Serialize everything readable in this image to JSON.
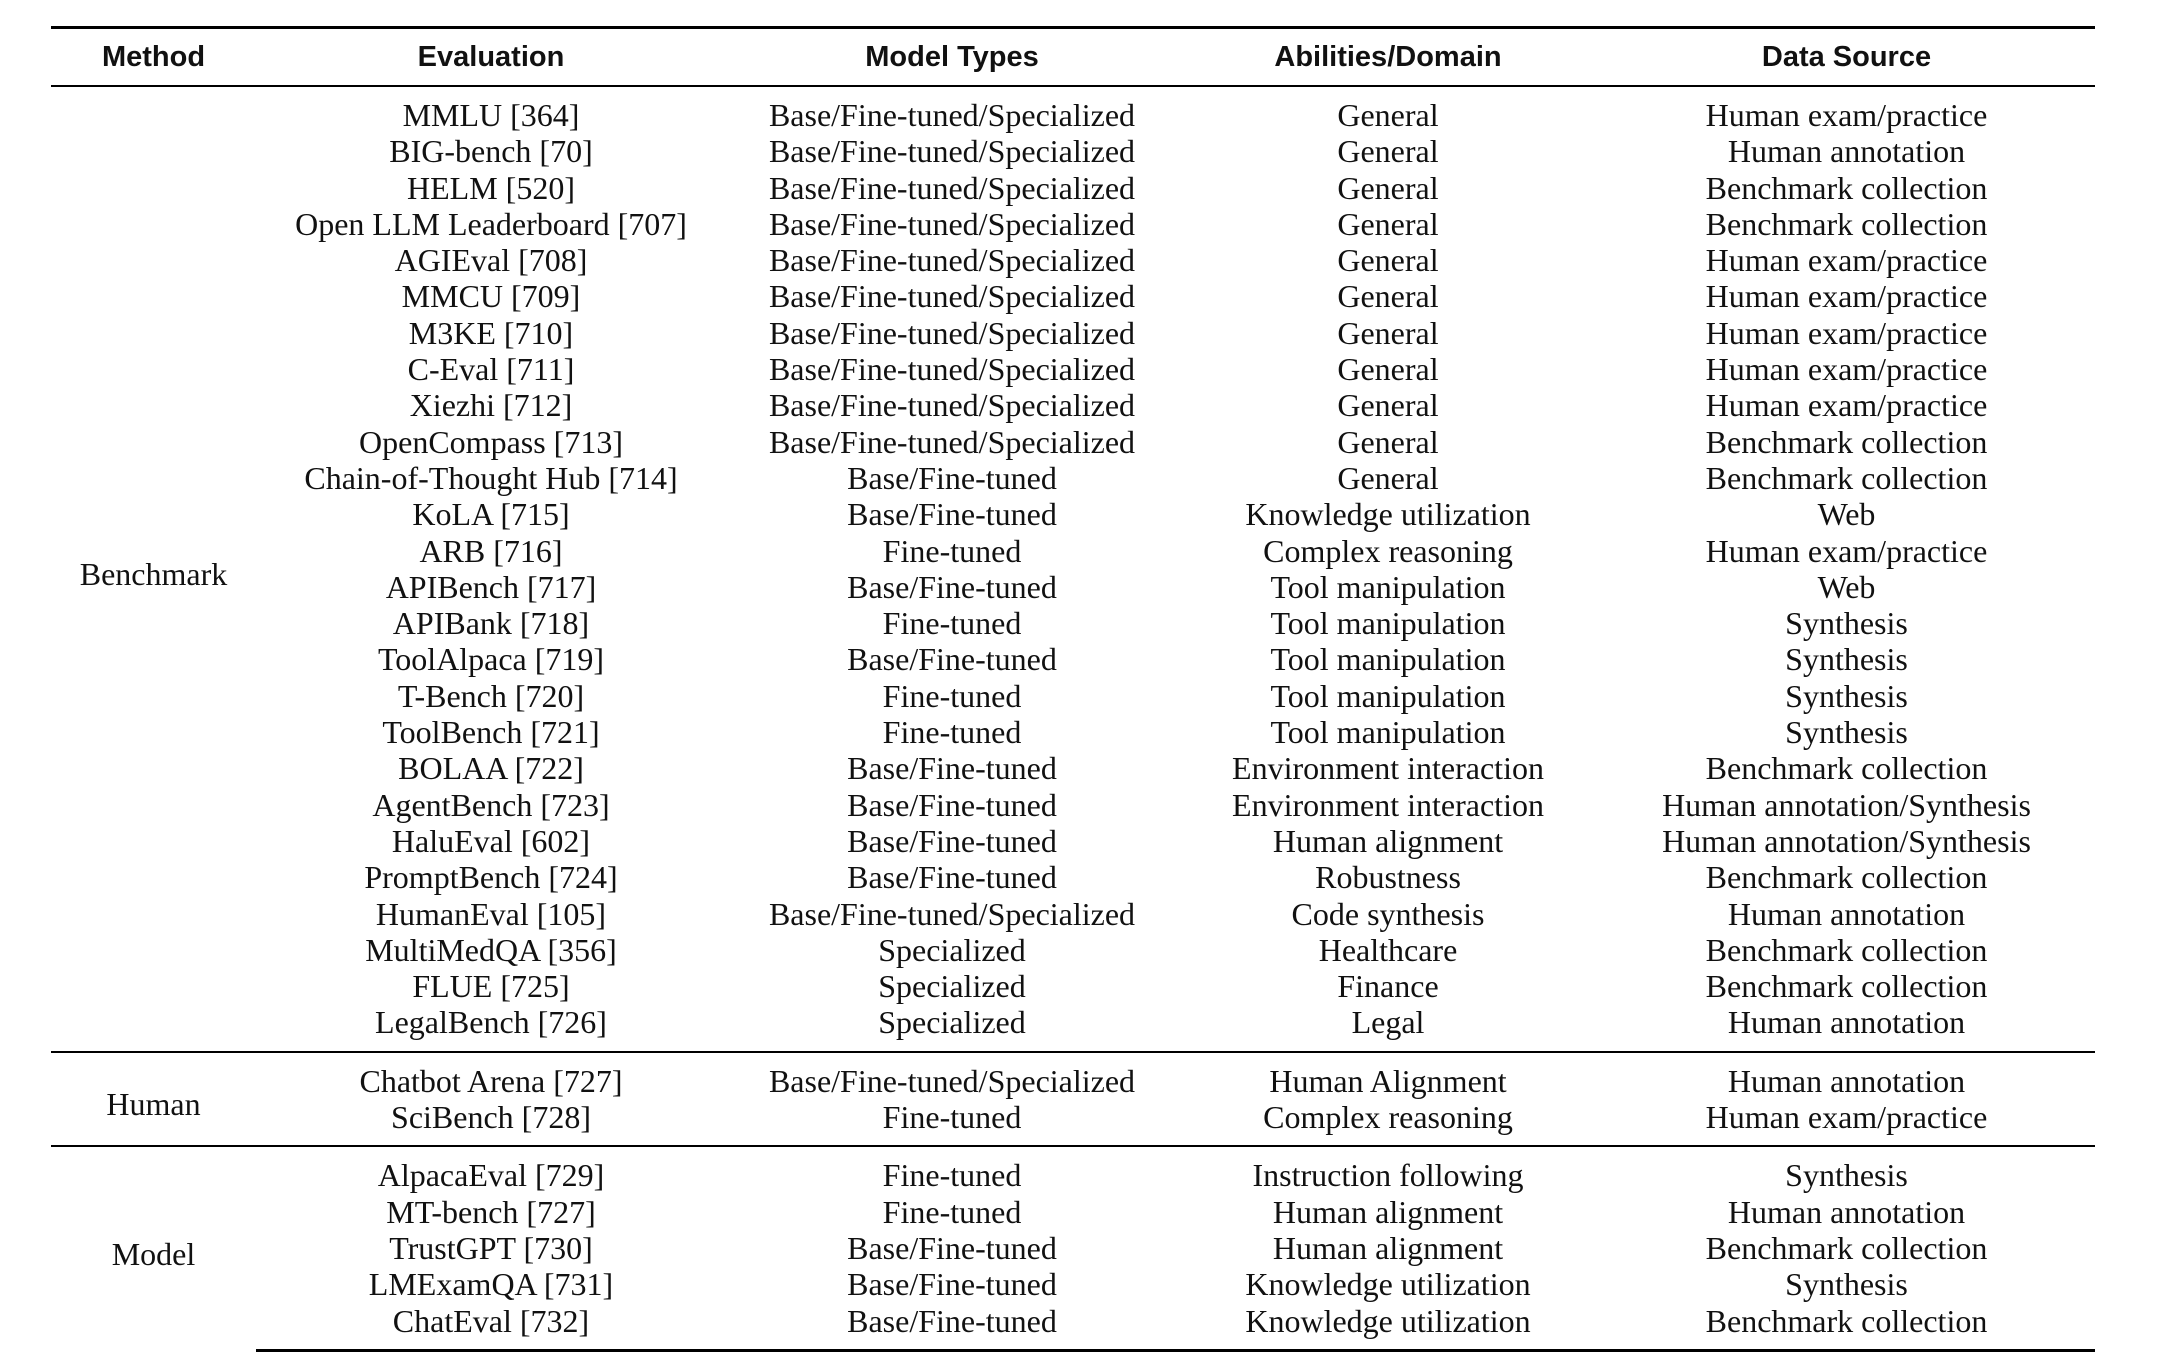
{
  "headers": {
    "method": "Method",
    "evaluation": "Evaluation",
    "model_types": "Model Types",
    "abilities": "Abilities/Domain",
    "data_source": "Data Source"
  },
  "groups": [
    {
      "method": "Benchmark",
      "rows": [
        {
          "evaluation": "MMLU [364]",
          "model_types": "Base/Fine-tuned/Specialized",
          "abilities": "General",
          "data_source": "Human exam/practice"
        },
        {
          "evaluation": "BIG-bench [70]",
          "model_types": "Base/Fine-tuned/Specialized",
          "abilities": "General",
          "data_source": "Human annotation"
        },
        {
          "evaluation": "HELM [520]",
          "model_types": "Base/Fine-tuned/Specialized",
          "abilities": "General",
          "data_source": "Benchmark collection"
        },
        {
          "evaluation": "Open LLM Leaderboard [707]",
          "model_types": "Base/Fine-tuned/Specialized",
          "abilities": "General",
          "data_source": "Benchmark collection"
        },
        {
          "evaluation": "AGIEval [708]",
          "model_types": "Base/Fine-tuned/Specialized",
          "abilities": "General",
          "data_source": "Human exam/practice"
        },
        {
          "evaluation": "MMCU [709]",
          "model_types": "Base/Fine-tuned/Specialized",
          "abilities": "General",
          "data_source": "Human exam/practice"
        },
        {
          "evaluation": "M3KE [710]",
          "model_types": "Base/Fine-tuned/Specialized",
          "abilities": "General",
          "data_source": "Human exam/practice"
        },
        {
          "evaluation": "C-Eval [711]",
          "model_types": "Base/Fine-tuned/Specialized",
          "abilities": "General",
          "data_source": "Human exam/practice"
        },
        {
          "evaluation": "Xiezhi [712]",
          "model_types": "Base/Fine-tuned/Specialized",
          "abilities": "General",
          "data_source": "Human exam/practice"
        },
        {
          "evaluation": "OpenCompass [713]",
          "model_types": "Base/Fine-tuned/Specialized",
          "abilities": "General",
          "data_source": "Benchmark collection"
        },
        {
          "evaluation": "Chain-of-Thought Hub [714]",
          "model_types": "Base/Fine-tuned",
          "abilities": "General",
          "data_source": "Benchmark collection"
        },
        {
          "evaluation": "KoLA [715]",
          "model_types": "Base/Fine-tuned",
          "abilities": "Knowledge utilization",
          "data_source": "Web"
        },
        {
          "evaluation": "ARB [716]",
          "model_types": "Fine-tuned",
          "abilities": "Complex reasoning",
          "data_source": "Human exam/practice"
        },
        {
          "evaluation": "APIBench [717]",
          "model_types": "Base/Fine-tuned",
          "abilities": "Tool manipulation",
          "data_source": "Web"
        },
        {
          "evaluation": "APIBank [718]",
          "model_types": "Fine-tuned",
          "abilities": "Tool manipulation",
          "data_source": "Synthesis"
        },
        {
          "evaluation": "ToolAlpaca [719]",
          "model_types": "Base/Fine-tuned",
          "abilities": "Tool manipulation",
          "data_source": "Synthesis"
        },
        {
          "evaluation": "T-Bench [720]",
          "model_types": "Fine-tuned",
          "abilities": "Tool manipulation",
          "data_source": "Synthesis"
        },
        {
          "evaluation": "ToolBench [721]",
          "model_types": "Fine-tuned",
          "abilities": "Tool manipulation",
          "data_source": "Synthesis"
        },
        {
          "evaluation": "BOLAA [722]",
          "model_types": "Base/Fine-tuned",
          "abilities": "Environment interaction",
          "data_source": "Benchmark collection"
        },
        {
          "evaluation": "AgentBench [723]",
          "model_types": "Base/Fine-tuned",
          "abilities": "Environment interaction",
          "data_source": "Human annotation/Synthesis"
        },
        {
          "evaluation": "HaluEval [602]",
          "model_types": "Base/Fine-tuned",
          "abilities": "Human alignment",
          "data_source": "Human annotation/Synthesis"
        },
        {
          "evaluation": "PromptBench [724]",
          "model_types": "Base/Fine-tuned",
          "abilities": "Robustness",
          "data_source": "Benchmark collection"
        },
        {
          "evaluation": "HumanEval [105]",
          "model_types": "Base/Fine-tuned/Specialized",
          "abilities": "Code synthesis",
          "data_source": "Human annotation"
        },
        {
          "evaluation": "MultiMedQA [356]",
          "model_types": "Specialized",
          "abilities": "Healthcare",
          "data_source": "Benchmark collection"
        },
        {
          "evaluation": "FLUE [725]",
          "model_types": "Specialized",
          "abilities": "Finance",
          "data_source": "Benchmark collection"
        },
        {
          "evaluation": "LegalBench [726]",
          "model_types": "Specialized",
          "abilities": "Legal",
          "data_source": "Human annotation"
        }
      ]
    },
    {
      "method": "Human",
      "rows": [
        {
          "evaluation": "Chatbot Arena [727]",
          "model_types": "Base/Fine-tuned/Specialized",
          "abilities": "Human Alignment",
          "data_source": "Human annotation"
        },
        {
          "evaluation": "SciBench [728]",
          "model_types": "Fine-tuned",
          "abilities": "Complex reasoning",
          "data_source": "Human exam/practice"
        }
      ]
    },
    {
      "method": "Model",
      "rows": [
        {
          "evaluation": "AlpacaEval [729]",
          "model_types": "Fine-tuned",
          "abilities": "Instruction following",
          "data_source": "Synthesis"
        },
        {
          "evaluation": "MT-bench [727]",
          "model_types": "Fine-tuned",
          "abilities": "Human alignment",
          "data_source": "Human annotation"
        },
        {
          "evaluation": "TrustGPT [730]",
          "model_types": "Base/Fine-tuned",
          "abilities": "Human alignment",
          "data_source": "Benchmark collection"
        },
        {
          "evaluation": "LMExamQA [731]",
          "model_types": "Base/Fine-tuned",
          "abilities": "Knowledge utilization",
          "data_source": "Synthesis"
        },
        {
          "evaluation": "ChatEval [732]",
          "model_types": "Base/Fine-tuned",
          "abilities": "Knowledge utilization",
          "data_source": "Benchmark collection"
        }
      ]
    }
  ]
}
